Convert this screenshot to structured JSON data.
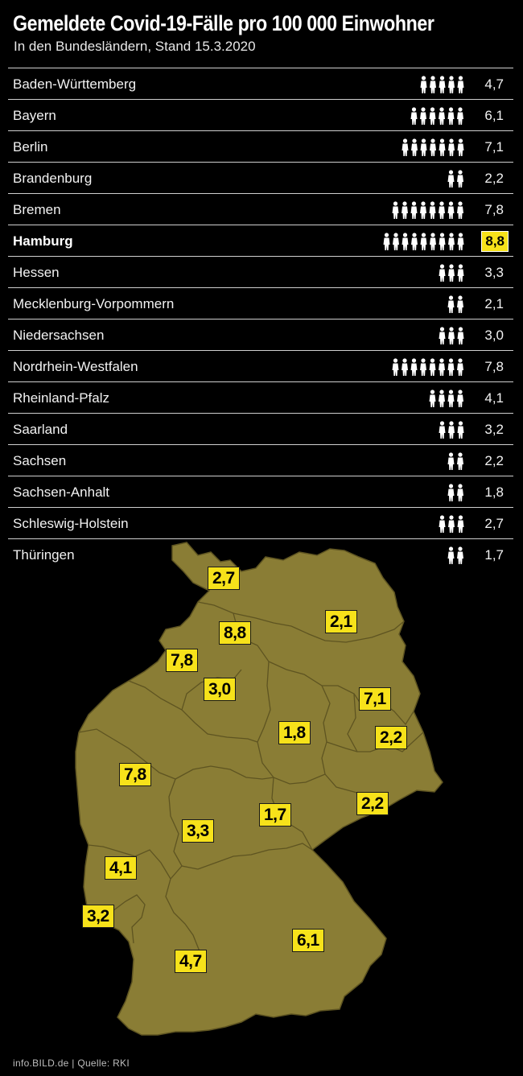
{
  "chart_data": {
    "type": "table",
    "title": "Gemeldete Covid-19-Fälle pro 100 000 Einwohner",
    "subtitle": "In den Bundesländern, Stand 15.3.2020",
    "highlight": "Hamburg",
    "colors": {
      "background": "#000000",
      "map": "#8a7d35",
      "badge": "#f7e21a",
      "text": "#ffffff"
    },
    "rows": [
      {
        "name": "Baden-Württemberg",
        "value": "4,7",
        "num": 4.7
      },
      {
        "name": "Bayern",
        "value": "6,1",
        "num": 6.1
      },
      {
        "name": "Berlin",
        "value": "7,1",
        "num": 7.1
      },
      {
        "name": "Brandenburg",
        "value": "2,2",
        "num": 2.2
      },
      {
        "name": "Bremen",
        "value": "7,8",
        "num": 7.8
      },
      {
        "name": "Hamburg",
        "value": "8,8",
        "num": 8.8
      },
      {
        "name": "Hessen",
        "value": "3,3",
        "num": 3.3
      },
      {
        "name": "Mecklenburg-Vorpommern",
        "value": "2,1",
        "num": 2.1
      },
      {
        "name": "Niedersachsen",
        "value": "3,0",
        "num": 3.0
      },
      {
        "name": "Nordrhein-Westfalen",
        "value": "7,8",
        "num": 7.8
      },
      {
        "name": "Rheinland-Pfalz",
        "value": "4,1",
        "num": 4.1
      },
      {
        "name": "Saarland",
        "value": "3,2",
        "num": 3.2
      },
      {
        "name": "Sachsen",
        "value": "2,2",
        "num": 2.2
      },
      {
        "name": "Sachsen-Anhalt",
        "value": "1,8",
        "num": 1.8
      },
      {
        "name": "Schleswig-Holstein",
        "value": "2,7",
        "num": 2.7
      },
      {
        "name": "Thüringen",
        "value": "1,7",
        "num": 1.7
      }
    ]
  },
  "footer": "info.BILD.de | Quelle: RKI"
}
